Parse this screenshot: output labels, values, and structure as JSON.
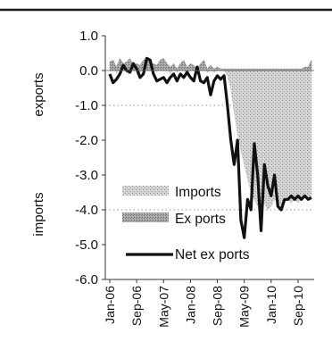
{
  "chart_data": {
    "type": "area",
    "title": "",
    "ylabel_upper": "exports",
    "ylabel_lower": "imports",
    "ylim": [
      -6.0,
      1.0
    ],
    "yticks": [
      "1.0",
      "0.0",
      "-1.0",
      "-2.0",
      "-3.0",
      "-4.0",
      "-5.0",
      "-6.0"
    ],
    "ytick_values": [
      1.0,
      0.0,
      -1.0,
      -2.0,
      -3.0,
      -4.0,
      -5.0,
      -6.0
    ],
    "xtick_labels": [
      "Jan-06",
      "Sep-06",
      "May-07",
      "Jan-08",
      "Sep-08",
      "May-09",
      "Jan-10",
      "Sep-10"
    ],
    "xtick_index": [
      0,
      8,
      16,
      24,
      32,
      40,
      48,
      56
    ],
    "legend": [
      "Imports",
      "Ex ports",
      "Net ex ports"
    ],
    "legend_placement": "bottom-center",
    "gridlines": "dotted at -1.0 and -4.0",
    "series": [
      {
        "name": "Imports",
        "values": [
          0.1,
          0.25,
          -0.1,
          0.2,
          0.05,
          0.1,
          0.3,
          0.05,
          0.1,
          -0.1,
          0.15,
          0.3,
          0.05,
          0.1,
          -0.05,
          0.25,
          0.35,
          0.1,
          -0.1,
          0.05,
          -0.05,
          0.05,
          0.1,
          -0.15,
          0.05,
          0.0,
          -0.1,
          0.05,
          0.1,
          -0.05,
          0.0,
          -0.05,
          0.0,
          0.02,
          0.02,
          -0.15,
          -0.5,
          -1.2,
          -1.8,
          -2.3,
          -2.7,
          -3.1,
          -3.5,
          -3.7,
          -3.9,
          -4.0,
          -3.8,
          -4.0,
          -3.9,
          -3.7,
          -3.8,
          -3.9,
          -3.6,
          -3.7,
          -3.8,
          -3.7,
          -3.8,
          -3.7,
          -3.6,
          -3.7,
          -3.6
        ]
      },
      {
        "name": "Ex ports",
        "values": [
          0.25,
          0.3,
          0.1,
          0.35,
          0.2,
          0.25,
          0.35,
          0.15,
          0.2,
          0.15,
          0.3,
          0.35,
          0.2,
          0.2,
          0.15,
          0.3,
          0.35,
          0.2,
          0.1,
          0.2,
          0.05,
          0.2,
          0.3,
          0.1,
          0.2,
          0.15,
          0.05,
          0.2,
          0.3,
          0.05,
          0.15,
          0.05,
          0.1,
          0.05,
          0.05,
          0.05,
          0.05,
          0.05,
          0.05,
          0.05,
          0.05,
          0.05,
          0.05,
          0.05,
          0.05,
          0.05,
          0.05,
          0.05,
          0.05,
          0.05,
          0.05,
          0.05,
          0.05,
          0.05,
          0.05,
          0.05,
          0.05,
          0.05,
          0.1,
          0.1,
          0.3
        ]
      },
      {
        "name": "Net ex ports",
        "values": [
          -0.1,
          -0.35,
          -0.25,
          -0.1,
          0.15,
          0.0,
          -0.05,
          0.2,
          0.05,
          -0.2,
          -0.1,
          0.35,
          0.3,
          -0.1,
          -0.3,
          -0.25,
          -0.2,
          -0.35,
          -0.2,
          -0.1,
          -0.3,
          -0.1,
          -0.2,
          -0.05,
          -0.2,
          -0.3,
          0.1,
          -0.3,
          -0.35,
          -0.2,
          -0.7,
          -0.3,
          -0.15,
          -0.25,
          -0.15,
          -1.0,
          -2.0,
          -2.7,
          -2.0,
          -4.3,
          -4.8,
          -3.7,
          -4.0,
          -2.1,
          -3.0,
          -4.6,
          -2.7,
          -3.3,
          -3.6,
          -3.0,
          -3.9,
          -4.0,
          -3.7,
          -3.7,
          -3.6,
          -3.7,
          -3.6,
          -3.7,
          -3.6,
          -3.7,
          -3.65
        ]
      }
    ]
  }
}
